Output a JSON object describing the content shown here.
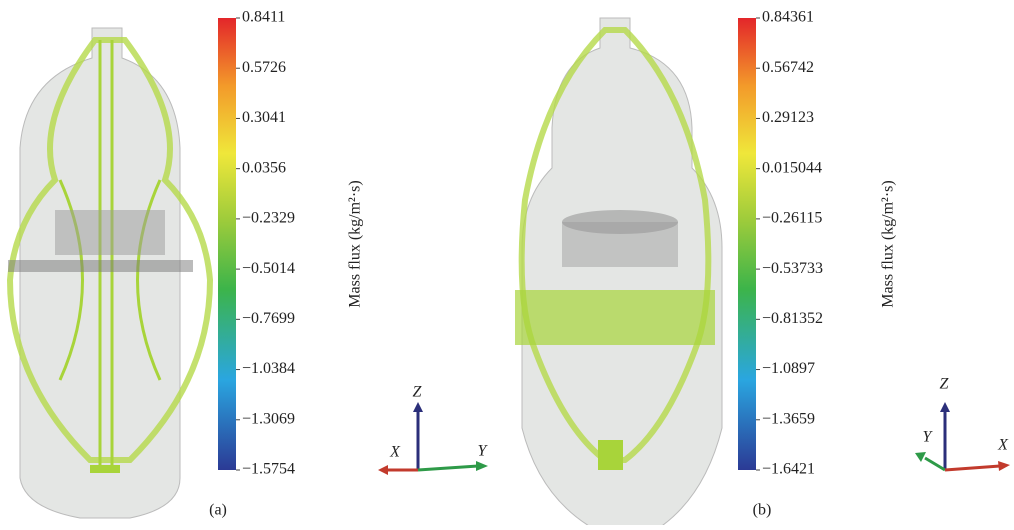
{
  "panels": [
    {
      "colorbar": {
        "lim": [
          -1.5754,
          0.8411
        ],
        "label": "Mass flux (kg/m²·s)",
        "ticks": [
          {
            "value": 0.8411,
            "label": "0.8411"
          },
          {
            "value": 0.5726,
            "label": "0.5726"
          },
          {
            "value": 0.3041,
            "label": "0.3041"
          },
          {
            "value": 0.0356,
            "label": "0.0356"
          },
          {
            "value": -0.2329,
            "label": "−0.2329"
          },
          {
            "value": -0.5014,
            "label": "−0.5014"
          },
          {
            "value": -0.7699,
            "label": "−0.7699"
          },
          {
            "value": -1.0384,
            "label": "−1.0384"
          },
          {
            "value": -1.3069,
            "label": "−1.3069"
          },
          {
            "value": -1.5754,
            "label": "−1.5754"
          }
        ]
      },
      "axes": {
        "z": "Z",
        "x": "X",
        "y": "Y"
      },
      "caption": "(a)"
    },
    {
      "colorbar": {
        "lim": [
          -1.6421,
          0.84361
        ],
        "label": "Mass flux (kg/m²·s)",
        "ticks": [
          {
            "value": 0.84361,
            "label": "0.84361"
          },
          {
            "value": 0.56742,
            "label": "0.56742"
          },
          {
            "value": 0.29123,
            "label": "0.29123"
          },
          {
            "value": 0.015044,
            "label": "0.015044"
          },
          {
            "value": -0.26115,
            "label": "−0.26115"
          },
          {
            "value": -0.53733,
            "label": "−0.53733"
          },
          {
            "value": -0.81352,
            "label": "−0.81352"
          },
          {
            "value": -1.0897,
            "label": "−1.0897"
          },
          {
            "value": -1.3659,
            "label": "−1.3659"
          },
          {
            "value": -1.6421,
            "label": "−1.6421"
          }
        ]
      },
      "axes": {
        "z": "Z",
        "x": "X",
        "y": "Y"
      },
      "caption": "(b)"
    }
  ]
}
